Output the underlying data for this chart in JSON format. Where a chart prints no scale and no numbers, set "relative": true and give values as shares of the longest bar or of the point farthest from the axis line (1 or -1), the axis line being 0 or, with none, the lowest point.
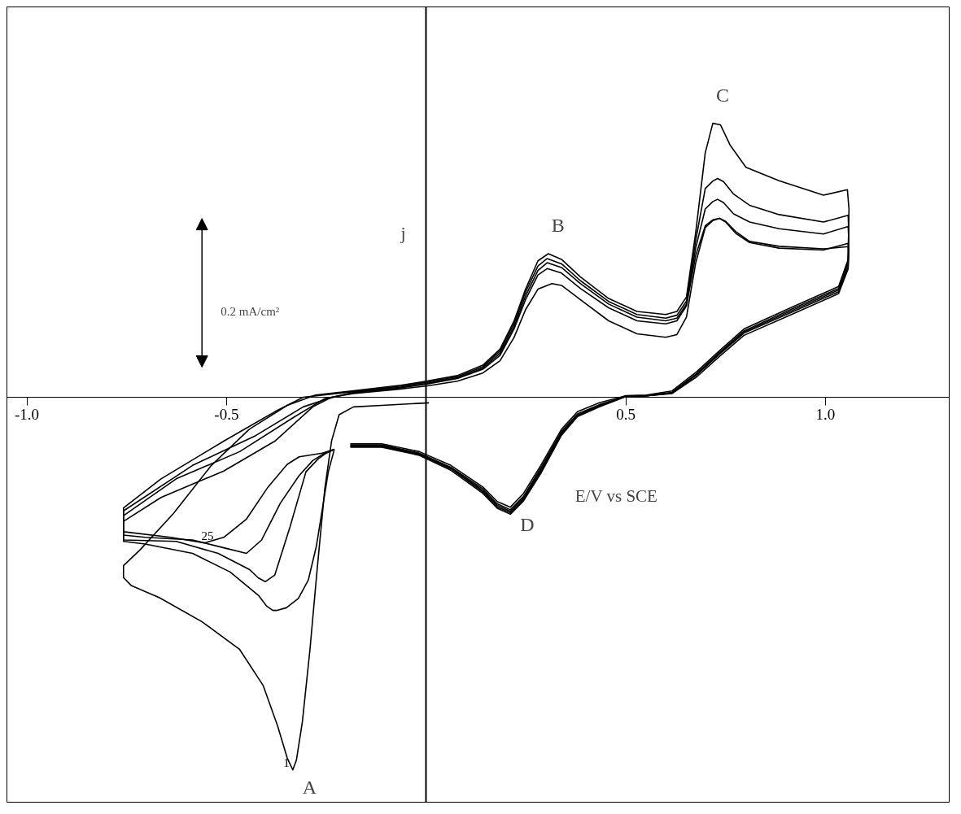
{
  "chart_data": {
    "type": "line",
    "xlabel": "E/V vs SCE",
    "ylabel": "j",
    "relative": true,
    "tick_labels": "x",
    "xlim": [
      -1.05,
      1.31
    ],
    "xticks": [
      {
        "value": -1.0,
        "label": "-1.0"
      },
      {
        "value": -0.5,
        "label": "-0.5"
      },
      0.5,
      {
        "value": 1.0,
        "label": "1.0"
      }
    ],
    "series": [
      {
        "name": "1",
        "color": "#000000",
        "x": [
          0.007,
          -0.111,
          -0.182,
          -0.218,
          -0.237,
          -0.254,
          -0.273,
          -0.291,
          -0.31,
          -0.325,
          -0.334,
          -0.348,
          -0.372,
          -0.408,
          -0.467,
          -0.562,
          -0.668,
          -0.739,
          -0.758,
          -0.758,
          -0.716,
          -0.633,
          -0.538,
          -0.443,
          -0.348,
          -0.277,
          -0.182,
          -0.064,
          0.0,
          0.078,
          0.142,
          0.185,
          0.22,
          0.249,
          0.28,
          0.306,
          0.339,
          0.386,
          0.457,
          0.528,
          0.6,
          0.628,
          0.652,
          0.675,
          0.699,
          0.718,
          0.737,
          0.761,
          0.801,
          0.884,
          0.995,
          1.055,
          1.059,
          1.057,
          1.033,
          0.915,
          0.796,
          0.735,
          0.678,
          0.616,
          0.552,
          0.5,
          0.434,
          0.379,
          0.339,
          0.287,
          0.244,
          0.211,
          0.178,
          0.142,
          0.062,
          -0.017,
          -0.111,
          -0.19
        ],
        "values": [
          -0.015,
          -0.022,
          -0.026,
          -0.047,
          -0.118,
          -0.247,
          -0.462,
          -0.677,
          -0.871,
          -0.974,
          -1.0,
          -0.968,
          -0.882,
          -0.774,
          -0.677,
          -0.602,
          -0.538,
          -0.505,
          -0.484,
          -0.452,
          -0.409,
          -0.312,
          -0.183,
          -0.086,
          -0.022,
          0.006,
          0.017,
          0.032,
          0.043,
          0.058,
          0.086,
          0.129,
          0.204,
          0.29,
          0.366,
          0.385,
          0.37,
          0.323,
          0.265,
          0.23,
          0.222,
          0.23,
          0.269,
          0.441,
          0.656,
          0.735,
          0.731,
          0.677,
          0.617,
          0.581,
          0.542,
          0.557,
          0.505,
          0.37,
          0.297,
          0.241,
          0.183,
          0.125,
          0.069,
          0.017,
          0.006,
          0.004,
          -0.015,
          -0.039,
          -0.086,
          -0.183,
          -0.258,
          -0.295,
          -0.28,
          -0.241,
          -0.183,
          -0.146,
          -0.125,
          -0.125
        ]
      },
      {
        "color": "#000000",
        "x": [
          -0.23,
          -0.245,
          -0.26,
          -0.275,
          -0.295,
          -0.32,
          -0.35,
          -0.373,
          -0.384,
          -0.4,
          -0.419,
          -0.491,
          -0.585,
          -0.704,
          -0.758,
          -0.758,
          -0.664,
          -0.507,
          -0.379,
          -0.308,
          -0.182,
          -0.064,
          0.0,
          0.078,
          0.142,
          0.185,
          0.22,
          0.249,
          0.28,
          0.303,
          0.339,
          0.386,
          0.457,
          0.528,
          0.6,
          0.628,
          0.652,
          0.675,
          0.699,
          0.718,
          0.73,
          0.745,
          0.77,
          0.81,
          0.884,
          0.995,
          1.057,
          1.058,
          1.057,
          1.033,
          0.915,
          0.796,
          0.735,
          0.678,
          0.616,
          0.552,
          0.5,
          0.434,
          0.379,
          0.339,
          0.287,
          0.244,
          0.211,
          0.178,
          0.142,
          0.062,
          -0.017,
          -0.111,
          -0.19
        ],
        "values": [
          -0.14,
          -0.2,
          -0.3,
          -0.4,
          -0.49,
          -0.54,
          -0.565,
          -0.572,
          -0.572,
          -0.56,
          -0.533,
          -0.469,
          -0.419,
          -0.394,
          -0.387,
          -0.297,
          -0.219,
          -0.118,
          -0.039,
          0.0,
          0.015,
          0.03,
          0.04,
          0.055,
          0.082,
          0.124,
          0.198,
          0.282,
          0.352,
          0.372,
          0.358,
          0.313,
          0.257,
          0.222,
          0.212,
          0.22,
          0.258,
          0.42,
          0.56,
          0.58,
          0.587,
          0.578,
          0.545,
          0.515,
          0.49,
          0.47,
          0.488,
          0.45,
          0.365,
          0.292,
          0.236,
          0.178,
          0.12,
          0.064,
          0.013,
          0.004,
          0.002,
          -0.02,
          -0.045,
          -0.092,
          -0.19,
          -0.266,
          -0.302,
          -0.286,
          -0.246,
          -0.188,
          -0.15,
          -0.128,
          -0.128
        ]
      },
      {
        "color": "#000000",
        "x": [
          -0.23,
          -0.25,
          -0.27,
          -0.301,
          -0.341,
          -0.379,
          -0.403,
          -0.42,
          -0.443,
          -0.521,
          -0.626,
          -0.758,
          -0.758,
          -0.585,
          -0.427,
          -0.308,
          -0.246,
          -0.182,
          -0.064,
          0.0,
          0.078,
          0.142,
          0.185,
          0.22,
          0.249,
          0.28,
          0.303,
          0.339,
          0.386,
          0.457,
          0.528,
          0.6,
          0.628,
          0.652,
          0.675,
          0.699,
          0.718,
          0.73,
          0.745,
          0.77,
          0.81,
          0.884,
          0.995,
          1.057,
          1.058,
          1.057,
          1.033,
          0.915,
          0.796,
          0.735,
          0.678,
          0.616,
          0.552,
          0.5,
          0.434,
          0.379,
          0.339,
          0.287,
          0.244,
          0.211,
          0.178,
          0.142,
          0.062,
          -0.017,
          -0.111,
          -0.19
        ],
        "values": [
          -0.14,
          -0.15,
          -0.165,
          -0.2,
          -0.348,
          -0.477,
          -0.495,
          -0.485,
          -0.462,
          -0.419,
          -0.387,
          -0.383,
          -0.305,
          -0.183,
          -0.103,
          -0.026,
          -0.004,
          0.013,
          0.027,
          0.037,
          0.052,
          0.078,
          0.118,
          0.19,
          0.272,
          0.34,
          0.361,
          0.348,
          0.305,
          0.25,
          0.215,
          0.205,
          0.212,
          0.25,
          0.4,
          0.505,
          0.525,
          0.531,
          0.522,
          0.492,
          0.47,
          0.452,
          0.438,
          0.458,
          0.43,
          0.36,
          0.288,
          0.232,
          0.175,
          0.118,
          0.062,
          0.012,
          0.004,
          0.002,
          -0.022,
          -0.048,
          -0.096,
          -0.195,
          -0.27,
          -0.306,
          -0.29,
          -0.25,
          -0.19,
          -0.152,
          -0.13,
          -0.13
        ]
      },
      {
        "color": "#000000",
        "x": [
          -0.23,
          -0.254,
          -0.284,
          -0.318,
          -0.365,
          -0.412,
          -0.45,
          -0.507,
          -0.585,
          -0.704,
          -0.758,
          -0.758,
          -0.626,
          -0.467,
          -0.332,
          -0.254,
          -0.182,
          -0.064,
          0.0,
          0.078,
          0.142,
          0.185,
          0.22,
          0.249,
          0.28,
          0.303,
          0.339,
          0.386,
          0.457,
          0.528,
          0.6,
          0.628,
          0.652,
          0.675,
          0.699,
          0.718,
          0.735,
          0.75,
          0.775,
          0.81,
          0.884,
          0.995,
          1.057,
          1.058,
          1.057,
          1.033,
          0.915,
          0.796,
          0.735,
          0.678,
          0.616,
          0.552,
          0.5,
          0.434,
          0.379,
          0.339,
          0.287,
          0.244,
          0.211,
          0.178,
          0.142,
          0.062,
          -0.017,
          -0.111,
          -0.19
        ],
        "values": [
          -0.14,
          -0.15,
          -0.17,
          -0.21,
          -0.284,
          -0.383,
          -0.419,
          -0.404,
          -0.383,
          -0.376,
          -0.37,
          -0.318,
          -0.219,
          -0.146,
          -0.054,
          -0.004,
          0.012,
          0.025,
          0.035,
          0.05,
          0.075,
          0.112,
          0.183,
          0.262,
          0.328,
          0.345,
          0.333,
          0.292,
          0.24,
          0.205,
          0.197,
          0.205,
          0.245,
          0.38,
          0.46,
          0.476,
          0.48,
          0.47,
          0.44,
          0.415,
          0.4,
          0.395,
          0.413,
          0.4,
          0.35,
          0.283,
          0.228,
          0.172,
          0.116,
          0.06,
          0.011,
          0.004,
          0.002,
          -0.024,
          -0.05,
          -0.099,
          -0.2,
          -0.274,
          -0.31,
          -0.294,
          -0.254,
          -0.192,
          -0.154,
          -0.132,
          -0.132
        ]
      },
      {
        "name": "25",
        "color": "#000000",
        "x": [
          -0.23,
          -0.26,
          -0.318,
          -0.348,
          -0.396,
          -0.45,
          -0.507,
          -0.555,
          -0.64,
          -0.758,
          -0.758,
          -0.664,
          -0.507,
          -0.379,
          -0.284,
          -0.237,
          -0.182,
          -0.064,
          0.0,
          0.078,
          0.142,
          0.185,
          0.22,
          0.249,
          0.28,
          0.315,
          0.339,
          0.386,
          0.457,
          0.528,
          0.6,
          0.628,
          0.652,
          0.675,
          0.699,
          0.718,
          0.735,
          0.75,
          0.775,
          0.81,
          0.884,
          0.995,
          1.057,
          1.058,
          1.057,
          1.033,
          0.915,
          0.796,
          0.735,
          0.678,
          0.616,
          0.552,
          0.5,
          0.434,
          0.379,
          0.339,
          0.287,
          0.244,
          0.211,
          0.178,
          0.142,
          0.062,
          -0.017,
          -0.111,
          -0.19
        ],
        "values": [
          -0.14,
          -0.15,
          -0.16,
          -0.18,
          -0.241,
          -0.327,
          -0.376,
          -0.391,
          -0.376,
          -0.361,
          -0.333,
          -0.269,
          -0.198,
          -0.118,
          -0.026,
          0.0,
          0.01,
          0.022,
          0.03,
          0.043,
          0.065,
          0.098,
          0.16,
          0.235,
          0.29,
          0.305,
          0.3,
          0.262,
          0.205,
          0.17,
          0.161,
          0.168,
          0.215,
          0.36,
          0.455,
          0.474,
          0.48,
          0.472,
          0.445,
          0.418,
          0.405,
          0.398,
          0.404,
          0.392,
          0.345,
          0.278,
          0.222,
          0.166,
          0.11,
          0.055,
          0.01,
          0.004,
          0.002,
          -0.026,
          -0.052,
          -0.102,
          -0.205,
          -0.278,
          -0.314,
          -0.298,
          -0.258,
          -0.196,
          -0.156,
          -0.134,
          -0.134
        ]
      }
    ],
    "annotations": [
      {
        "text": "A",
        "x": -0.334,
        "y": -1.0
      },
      {
        "text": "B",
        "x": 0.306,
        "y": 0.385
      },
      {
        "text": "C",
        "x": 0.718,
        "y": 0.735
      },
      {
        "text": "D",
        "x": 0.211,
        "y": -0.295
      },
      "0.2 mA/cm²"
    ]
  }
}
